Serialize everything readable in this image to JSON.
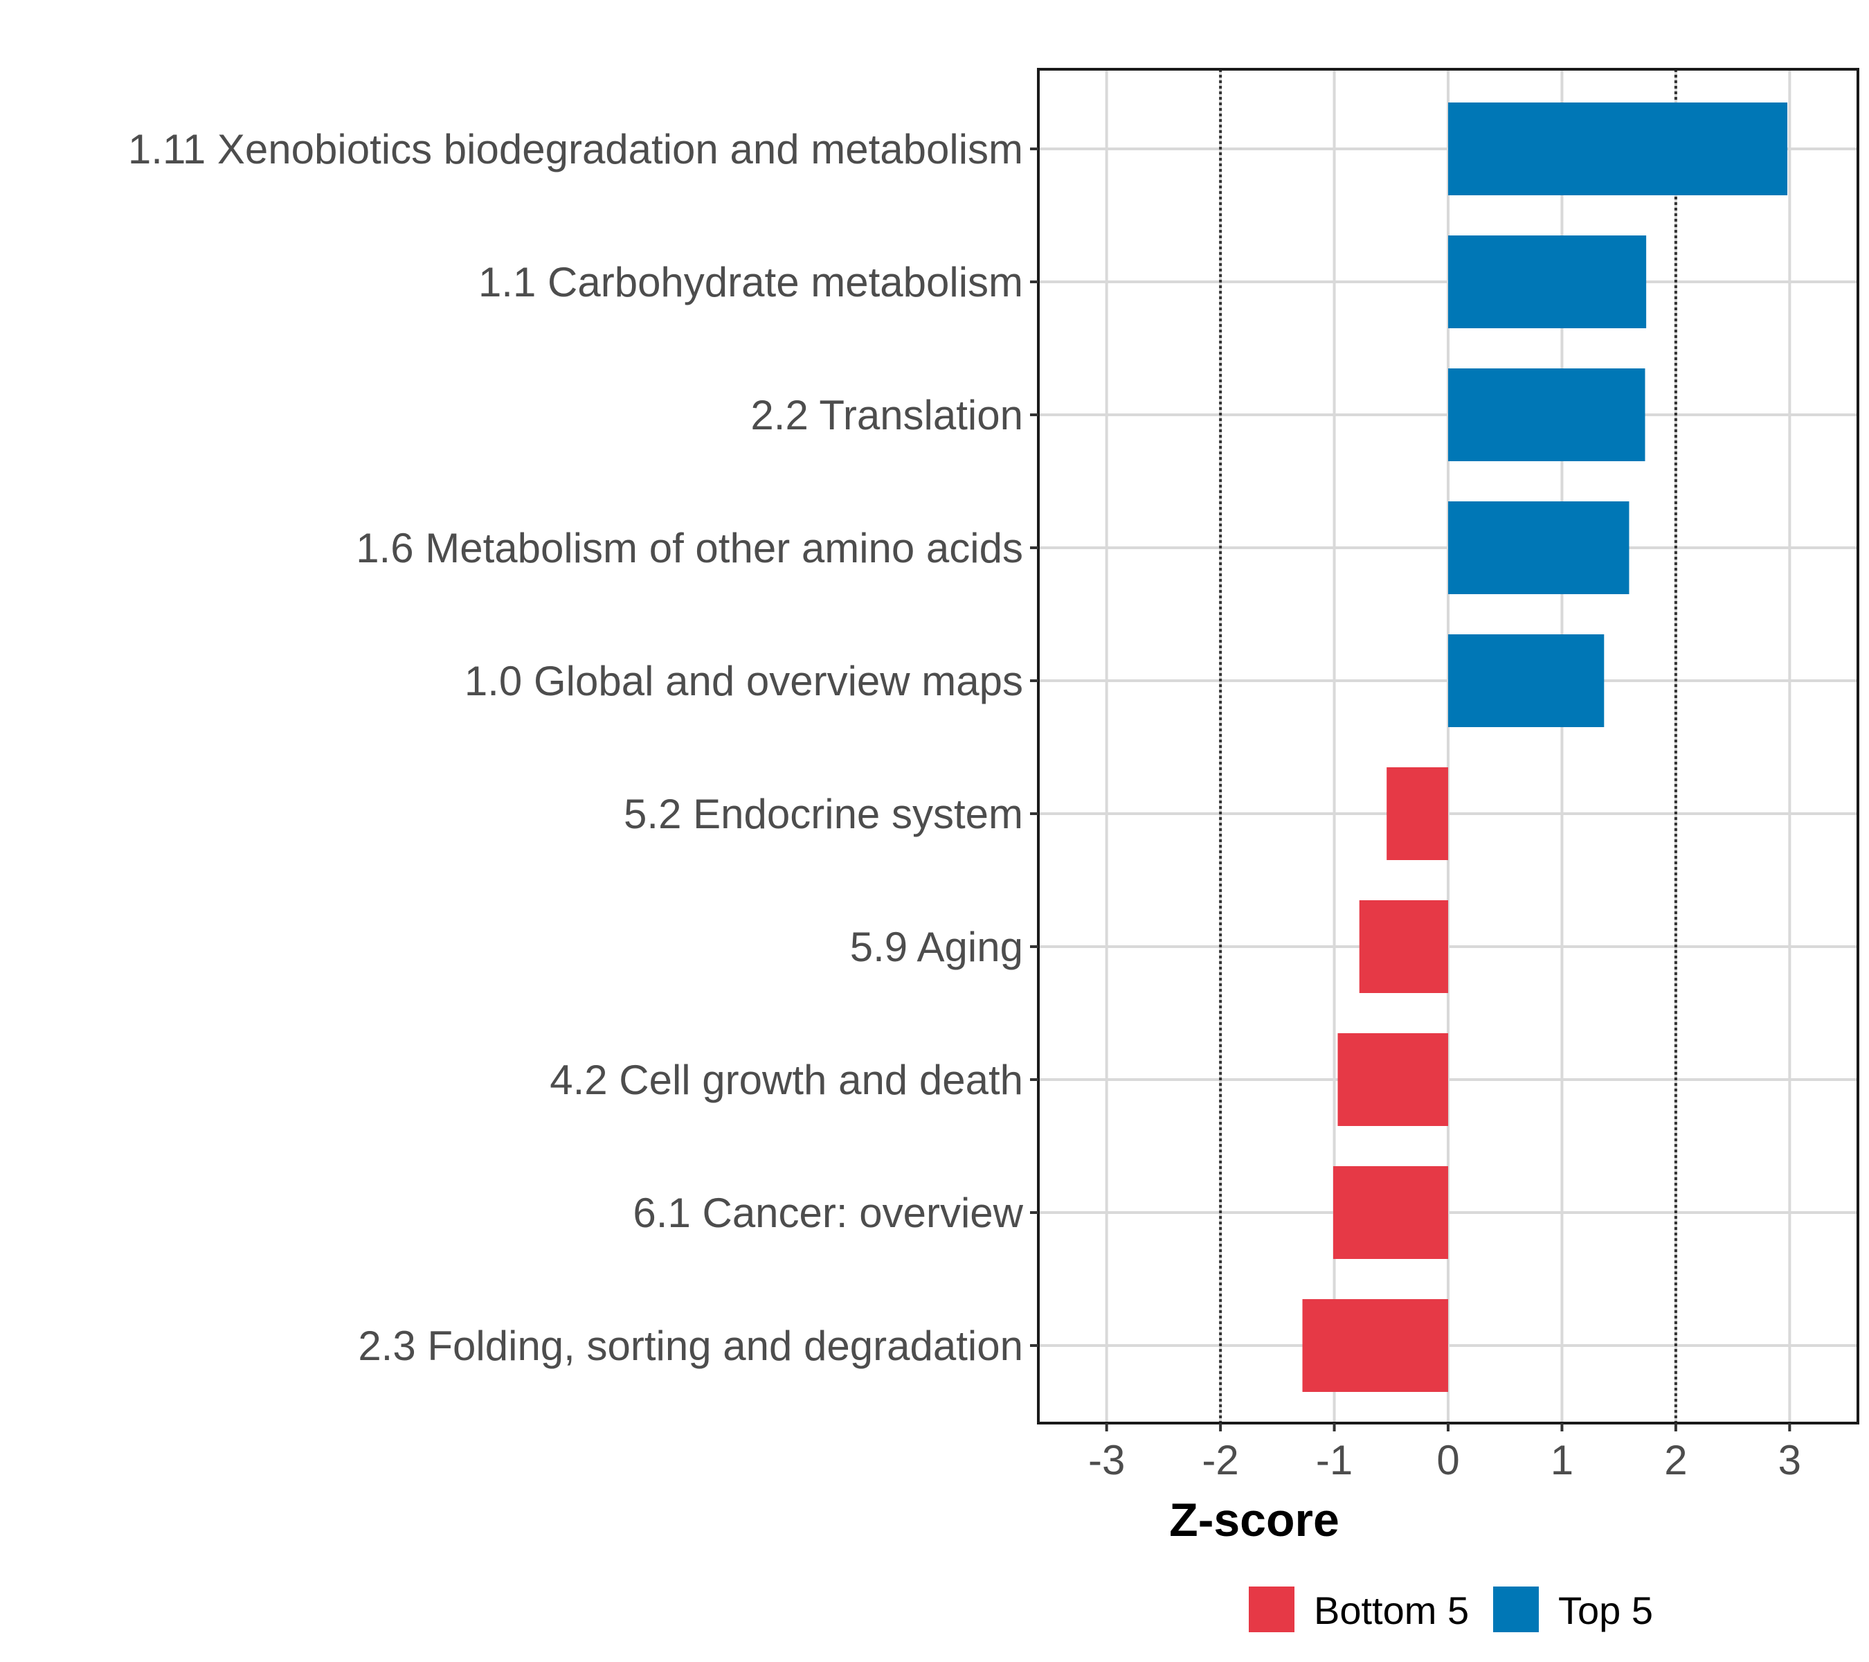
{
  "chart_data": {
    "type": "bar",
    "orientation": "horizontal",
    "categories": [
      "1.11 Xenobiotics biodegradation and metabolism",
      "1.1 Carbohydrate metabolism",
      "2.2 Translation",
      "1.6 Metabolism of other amino acids",
      "1.0 Global and overview maps",
      "5.2 Endocrine system",
      "5.9 Aging",
      "4.2 Cell growth and death",
      "6.1 Cancer: overview",
      "2.3 Folding, sorting and degradation"
    ],
    "values": [
      2.98,
      1.74,
      1.73,
      1.59,
      1.37,
      -0.54,
      -0.78,
      -0.97,
      -1.01,
      -1.28
    ],
    "groups": [
      "Top 5",
      "Top 5",
      "Top 5",
      "Top 5",
      "Top 5",
      "Bottom 5",
      "Bottom 5",
      "Bottom 5",
      "Bottom 5",
      "Bottom 5"
    ],
    "xlabel": "Z-score",
    "ylabel": "",
    "title": "",
    "xlim": [
      -3.6,
      3.6
    ],
    "xticks": [
      "-3",
      "-2",
      "-1",
      "0",
      "1",
      "2",
      "3"
    ],
    "reference_lines": [
      -2,
      2
    ],
    "grid": true,
    "legend": {
      "position": "bottom",
      "entries": [
        {
          "label": "Bottom 5",
          "color": "#E63946"
        },
        {
          "label": "Top 5",
          "color": "#0077B6"
        }
      ]
    }
  }
}
